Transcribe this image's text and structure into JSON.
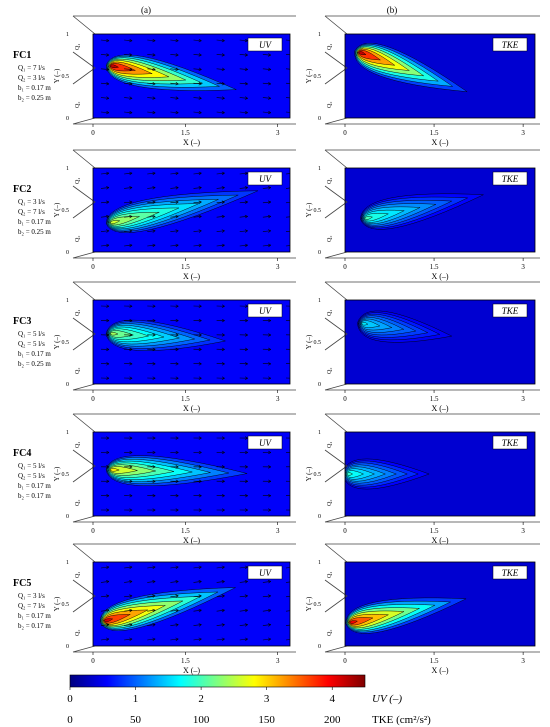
{
  "column_labels": [
    "(a)",
    "(b)"
  ],
  "panel_labels": [
    "UV",
    "TKE"
  ],
  "axis": {
    "xlabel": "X (–)",
    "ylabel": "Y (–)",
    "x_ticks": [
      "0",
      "1.5",
      "3"
    ],
    "y_ticks": [
      "0",
      "0.5",
      "1"
    ]
  },
  "inflow_labels": [
    "Q₁",
    "Q₂"
  ],
  "rows": [
    {
      "id": "FC1",
      "params": [
        "Q₁ = 7 l/s",
        "Q₂ = 3 l/s",
        "b₁ = 0.17 m",
        "b₂ = 0.25 m"
      ]
    },
    {
      "id": "FC2",
      "params": [
        "Q₁ = 3 l/s",
        "Q₂ = 7 l/s",
        "b₁ = 0.17 m",
        "b₂ = 0.25 m"
      ]
    },
    {
      "id": "FC3",
      "params": [
        "Q₁ = 5 l/s",
        "Q₂ = 5 l/s",
        "b₁ = 0.17 m",
        "b₂ = 0.25 m"
      ]
    },
    {
      "id": "FC4",
      "params": [
        "Q₁ = 5 l/s",
        "Q₂ = 5 l/s",
        "b₁ = 0.17 m",
        "b₂ = 0.17 m"
      ]
    },
    {
      "id": "FC5",
      "params": [
        "Q₁ = 3 l/s",
        "Q₂ = 7 l/s",
        "b₁ = 0.17 m",
        "b₂ = 0.17 m"
      ]
    }
  ],
  "colorbar": {
    "uv_ticks": [
      "0",
      "1",
      "2",
      "3",
      "4"
    ],
    "uv_label": "UV (–)",
    "tke_ticks": [
      "0",
      "50",
      "100",
      "150",
      "200"
    ],
    "tke_label": "TKE (cm²/s²)",
    "uv_range": [
      0,
      4.5
    ],
    "tke_range": [
      0,
      225
    ],
    "colormap": [
      "#00007f",
      "#0000ff",
      "#007fff",
      "#00ffff",
      "#7fff7f",
      "#ffff00",
      "#ff7f00",
      "#ff0000",
      "#7f0000"
    ]
  },
  "chart_data": {
    "type": "heatmap",
    "xlim": [
      0,
      3.2
    ],
    "ylim": [
      0,
      1
    ],
    "x_ticks": [
      0,
      1.5,
      3
    ],
    "y_ticks": [
      0,
      0.5,
      1
    ],
    "panels": [
      {
        "row": "FC1",
        "variable": "UV",
        "peak": {
          "x": 0.3,
          "y": 0.62,
          "value": 4.2
        },
        "jet_end": {
          "x": 2.6,
          "y": 0.3
        }
      },
      {
        "row": "FC1",
        "variable": "TKE",
        "peak": {
          "x": 0.25,
          "y": 0.78,
          "value": 210
        },
        "jet_end": {
          "x": 2.3,
          "y": 0.25
        }
      },
      {
        "row": "FC2",
        "variable": "UV",
        "peak": {
          "x": 0.3,
          "y": 0.35,
          "value": 2.6
        },
        "jet_end": {
          "x": 3.0,
          "y": 0.78
        }
      },
      {
        "row": "FC2",
        "variable": "TKE",
        "peak": {
          "x": 0.35,
          "y": 0.4,
          "value": 100
        },
        "jet_end": {
          "x": 2.6,
          "y": 0.72
        }
      },
      {
        "row": "FC3",
        "variable": "UV",
        "peak": {
          "x": 0.3,
          "y": 0.6,
          "value": 2.4
        },
        "jet_end": {
          "x": 2.4,
          "y": 0.5
        }
      },
      {
        "row": "FC3",
        "variable": "TKE",
        "peak": {
          "x": 0.3,
          "y": 0.72,
          "value": 80
        },
        "jet_end": {
          "x": 2.0,
          "y": 0.55
        }
      },
      {
        "row": "FC4",
        "variable": "UV",
        "peak": {
          "x": 0.3,
          "y": 0.55,
          "value": 2.9
        },
        "jet_end": {
          "x": 2.8,
          "y": 0.5
        }
      },
      {
        "row": "FC4",
        "variable": "TKE",
        "peak": {
          "x": 0.05,
          "y": 0.5,
          "value": 95
        },
        "jet_end": {
          "x": 1.6,
          "y": 0.5
        }
      },
      {
        "row": "FC5",
        "variable": "UV",
        "peak": {
          "x": 0.2,
          "y": 0.3,
          "value": 4.1
        },
        "jet_end": {
          "x": 2.6,
          "y": 0.75
        }
      },
      {
        "row": "FC5",
        "variable": "TKE",
        "peak": {
          "x": 0.1,
          "y": 0.28,
          "value": 200
        },
        "jet_end": {
          "x": 2.3,
          "y": 0.6
        }
      }
    ]
  }
}
